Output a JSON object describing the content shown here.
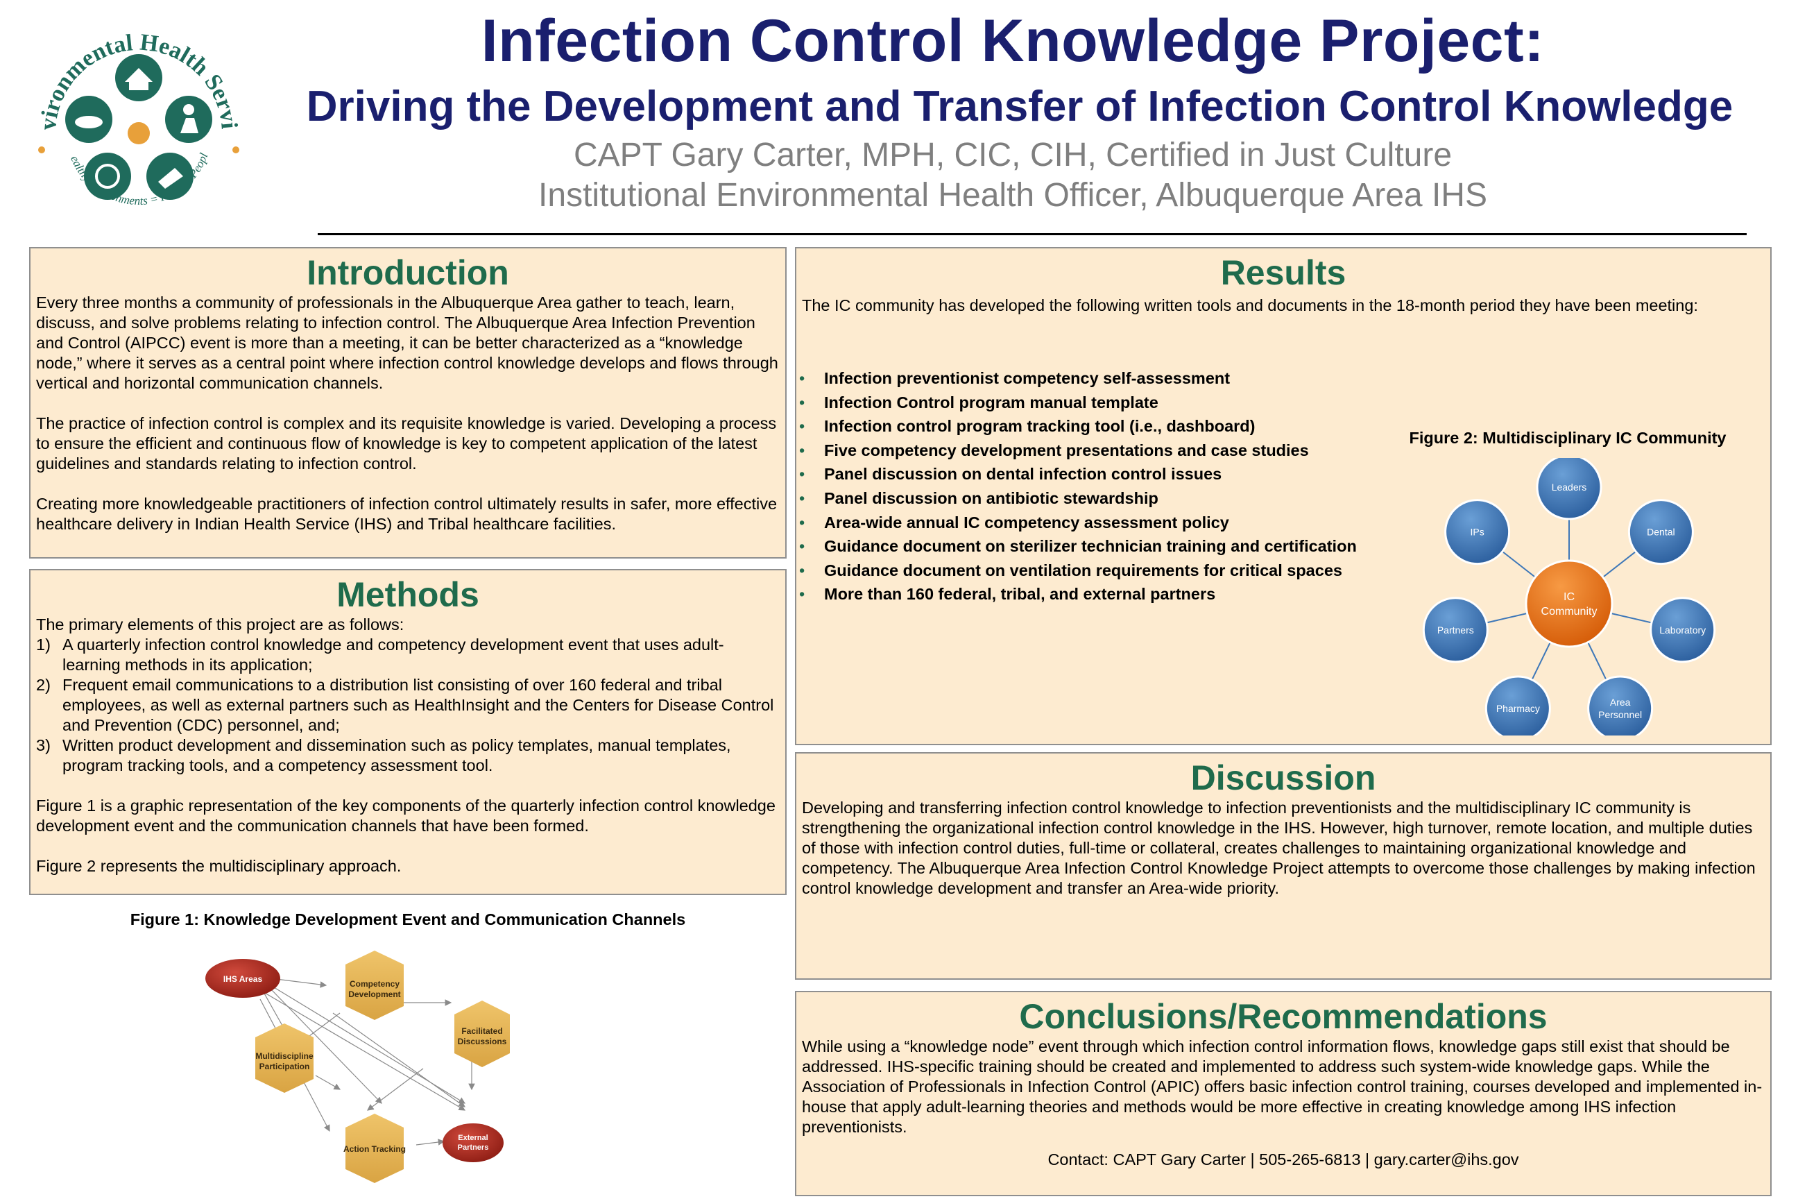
{
  "header": {
    "title": "Infection Control Knowledge Project:",
    "subtitle": "Driving the Development and Transfer of Infection Control Knowledge",
    "author": "CAPT Gary Carter, MPH, CIC, CIH, Certified in Just Culture",
    "position": "Institutional Environmental Health Officer, Albuquerque Area IHS"
  },
  "logo": {
    "top_text": "Environmental Health Services",
    "bottom_text": "Healthy Environments = Healthy People",
    "icons": [
      "house-icon",
      "person-icon",
      "wrench-icon",
      "plate-icon",
      "animal-icon"
    ],
    "colors": {
      "ring": "#1f6b5c",
      "accent": "#e8a03a"
    }
  },
  "introduction": {
    "heading": "Introduction",
    "paragraphs": [
      "Every three months a community of professionals in the Albuquerque Area gather to teach, learn, discuss, and solve problems relating to infection control. The Albuquerque Area Infection Prevention and Control (AIPCC) event is more than a meeting, it can be better characterized as a “knowledge node,” where it serves as a central point where infection control knowledge develops and flows through vertical and horizontal communication channels.",
      "The practice of infection control is complex and its requisite knowledge is varied.  Developing a process to ensure the efficient and continuous flow of knowledge is key to competent application of the latest guidelines and standards relating to infection control.",
      "Creating more knowledgeable practitioners of infection control ultimately results in safer, more effective healthcare delivery in Indian Health Service (IHS) and Tribal healthcare facilities."
    ]
  },
  "methods": {
    "heading": "Methods",
    "lead": "The primary elements of this project are as follows:",
    "items": [
      {
        "num": "1)",
        "text": "A quarterly infection control knowledge and competency development event that uses adult-learning methods in its application;"
      },
      {
        "num": "2)",
        "text": "Frequent email communications to a distribution list consisting of over 160 federal and tribal employees, as well as external partners such as HealthInsight and the Centers for Disease Control and Prevention (CDC) personnel, and;"
      },
      {
        "num": "3)",
        "text": "Written product development and dissemination such as policy templates, manual templates, program tracking tools, and a competency assessment tool."
      }
    ],
    "fig1_note": "Figure 1 is a graphic representation of the key components of the quarterly infection control knowledge development event and the communication channels that have been formed.",
    "fig2_note": "Figure 2 represents the multidisciplinary approach."
  },
  "figure1": {
    "caption": "Figure 1: Knowledge Development Event and Communication Channels",
    "nodes": {
      "ihs_areas": "IHS Areas",
      "competency": [
        "Competency",
        "Development"
      ],
      "multidiscipline": [
        "Multidiscipline",
        "Participation"
      ],
      "facilitated": [
        "Facilitated",
        "Discussions"
      ],
      "action": "Action Tracking",
      "external": [
        "External",
        "Partners"
      ]
    },
    "colors": {
      "hex": "#e3b24f",
      "oval": "#a8261c"
    }
  },
  "results": {
    "heading": "Results",
    "lead": "The IC community has developed the following written tools and documents in the 18-month period they have been meeting:",
    "bullet": "•",
    "items": [
      "Infection preventionist competency self-assessment",
      "Infection Control program manual template",
      "Infection control program tracking tool (i.e., dashboard)",
      "Five competency development presentations and case studies",
      "Panel discussion on dental infection control issues",
      "Panel discussion on antibiotic stewardship",
      "Area-wide annual IC competency assessment policy",
      "Guidance document on sterilizer technician training and certification",
      "Guidance document on ventilation requirements for critical spaces",
      "More than 160 federal, tribal, and external partners"
    ]
  },
  "figure2": {
    "caption": "Figure 2: Multidisciplinary IC Community",
    "center": [
      "IC",
      "Community"
    ],
    "nodes": [
      {
        "label": [
          "Leaders"
        ]
      },
      {
        "label": [
          "Dental"
        ]
      },
      {
        "label": [
          "Laboratory"
        ]
      },
      {
        "label": [
          "Area",
          "Personnel"
        ]
      },
      {
        "label": [
          "Pharmacy"
        ]
      },
      {
        "label": [
          "Partners"
        ]
      },
      {
        "label": [
          "IPs"
        ]
      }
    ],
    "colors": {
      "center": "#e06a10",
      "node": "#3d77b8"
    }
  },
  "discussion": {
    "heading": "Discussion",
    "text": "Developing and transferring infection control knowledge to infection preventionists and the multidisciplinary IC community is strengthening the organizational infection control knowledge in the IHS.   However, high turnover, remote location, and multiple duties of those with infection control duties, full-time or collateral, creates challenges to maintaining organizational knowledge and competency.  The Albuquerque Area Infection Control Knowledge Project attempts to overcome those challenges by making infection control knowledge development and transfer an Area-wide priority."
  },
  "conclusions": {
    "heading": "Conclusions/Recommendations",
    "text": "While using a “knowledge node” event through which infection control information flows, knowledge gaps still exist that should be addressed. IHS-specific training should be created and implemented to address such system-wide knowledge gaps.  While the Association of Professionals in Infection Control (APIC) offers basic infection control training, courses developed and implemented in-house that apply adult-learning theories and methods would be more effective in creating knowledge among IHS infection preventionists.",
    "contact": "Contact: CAPT Gary Carter | 505-265-6813 | gary.carter@ihs.gov"
  }
}
